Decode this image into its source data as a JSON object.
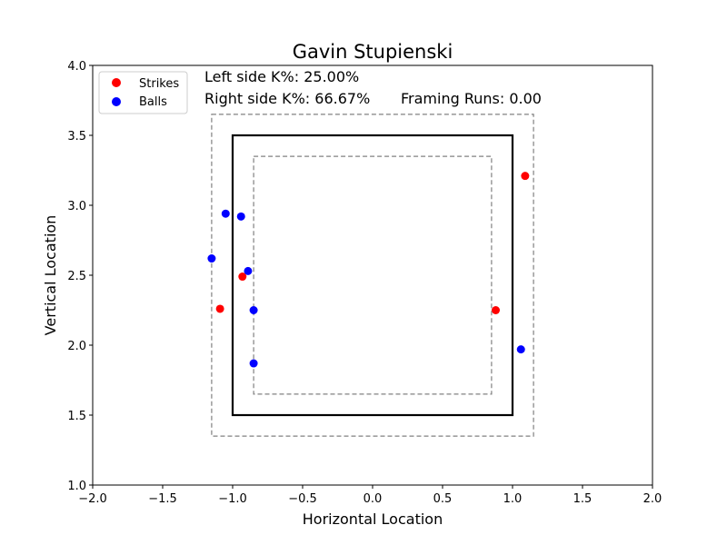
{
  "chart_data": {
    "type": "scatter",
    "title": "Gavin Stupienski",
    "xlabel": "Horizontal Location",
    "ylabel": "Vertical Location",
    "xlim": [
      -2.0,
      2.0
    ],
    "ylim": [
      1.0,
      4.0
    ],
    "xticks": [
      -2.0,
      -1.5,
      -1.0,
      -0.5,
      0.0,
      0.5,
      1.0,
      1.5,
      2.0
    ],
    "yticks": [
      1.0,
      1.5,
      2.0,
      2.5,
      3.0,
      3.5,
      4.0
    ],
    "xtick_labels": [
      "−2.0",
      "−1.5",
      "−1.0",
      "−0.5",
      "0.0",
      "0.5",
      "1.0",
      "1.5",
      "2.0"
    ],
    "ytick_labels": [
      "1.0",
      "1.5",
      "2.0",
      "2.5",
      "3.0",
      "3.5",
      "4.0"
    ],
    "grid": false,
    "legend": "top-left",
    "series": [
      {
        "name": "Strikes",
        "color": "#ff0000",
        "points": [
          {
            "x": -1.09,
            "y": 2.26
          },
          {
            "x": -0.93,
            "y": 2.49
          },
          {
            "x": 0.88,
            "y": 2.25
          },
          {
            "x": 1.09,
            "y": 3.21
          }
        ]
      },
      {
        "name": "Balls",
        "color": "#0000ff",
        "points": [
          {
            "x": -1.15,
            "y": 2.62
          },
          {
            "x": -1.05,
            "y": 2.94
          },
          {
            "x": -0.94,
            "y": 2.92
          },
          {
            "x": -0.89,
            "y": 2.53
          },
          {
            "x": -0.85,
            "y": 2.25
          },
          {
            "x": -0.85,
            "y": 1.87
          },
          {
            "x": 1.06,
            "y": 1.97
          }
        ]
      }
    ],
    "zones": [
      {
        "name": "strike-zone",
        "x": [
          -1.0,
          1.0
        ],
        "y": [
          1.5,
          3.5
        ],
        "style": "solid",
        "color": "#000000"
      },
      {
        "name": "outer-shadow-zone",
        "x": [
          -1.15,
          1.15
        ],
        "y": [
          1.35,
          3.65
        ],
        "style": "dashed",
        "color": "#808080"
      },
      {
        "name": "inner-shadow-zone",
        "x": [
          -0.85,
          0.85
        ],
        "y": [
          1.65,
          3.35
        ],
        "style": "dashed",
        "color": "#808080"
      }
    ],
    "annotations": {
      "left_k": "Left side K%: 25.00%",
      "right_k": "Right side K%: 66.67%",
      "framing_runs": "Framing Runs: 0.00"
    }
  }
}
